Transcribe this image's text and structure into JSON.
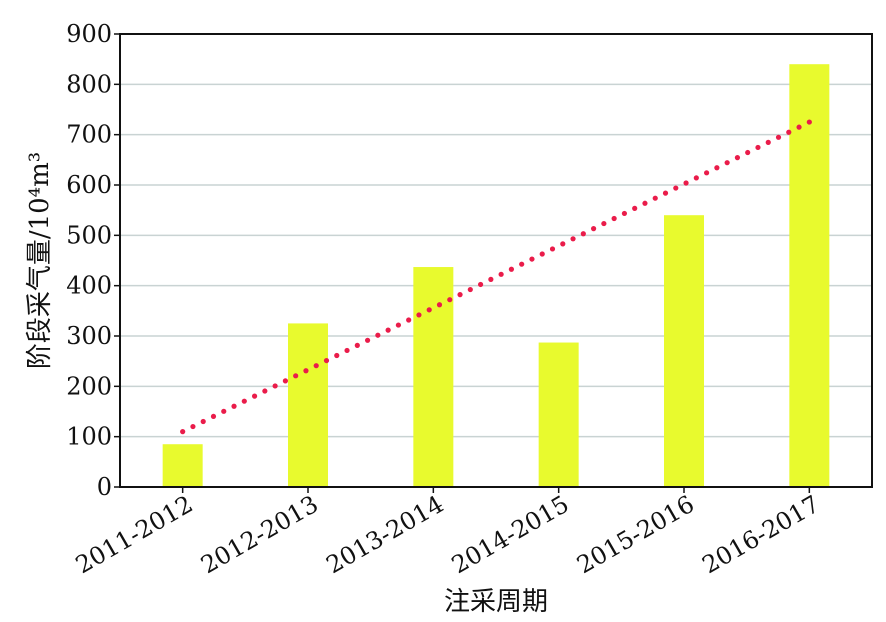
{
  "chart_data": {
    "type": "bar",
    "title": "",
    "xlabel": "注采周期",
    "ylabel": "阶段采气量/10⁴m³",
    "categories": [
      "2011-2012",
      "2012-2013",
      "2013-2014",
      "2014-2015",
      "2015-2016",
      "2016-2017"
    ],
    "series": [
      {
        "values": [
          85,
          325,
          437,
          287,
          540,
          840
        ]
      }
    ],
    "trendline": {
      "type": "linear",
      "style": "dotted",
      "start_value": 110,
      "end_value": 725
    },
    "ylim": [
      0,
      900
    ],
    "yticks": [
      0,
      100,
      200,
      300,
      400,
      500,
      600,
      700,
      800,
      900
    ],
    "grid": true,
    "legend": "none",
    "colors": {
      "bar": "#e8fa2e",
      "trendline": "#ea1c4a",
      "grid": "#c9d3d3",
      "axis": "#111111"
    }
  }
}
